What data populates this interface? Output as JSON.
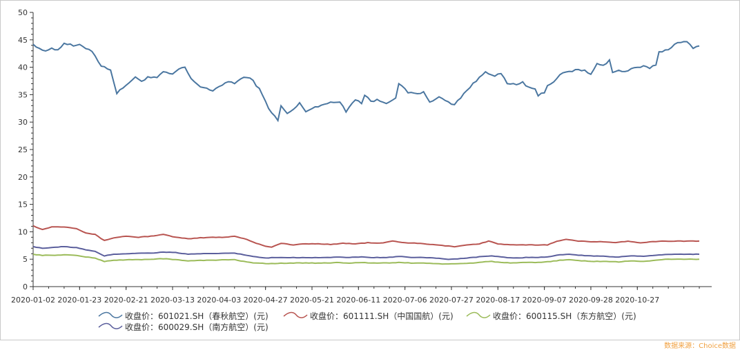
{
  "chart_data": {
    "type": "line",
    "ylim": [
      0,
      50
    ],
    "y_ticks": [
      0,
      5,
      10,
      15,
      20,
      25,
      30,
      35,
      40,
      45,
      50
    ],
    "x_tick_labels": [
      "2020-01-02",
      "2020-01-23",
      "2020-02-21",
      "2020-03-13",
      "2020-04-03",
      "2020-04-27",
      "2020-05-21",
      "2020-06-11",
      "2020-07-06",
      "2020-07-27",
      "2020-08-17",
      "2020-09-07",
      "2020-09-28",
      "2020-10-27"
    ],
    "x_count": 219,
    "grid": false,
    "legend_position": "bottom",
    "series": [
      {
        "name": "收盘价：601021.SH（春秋航空）(元)",
        "color": "#4a76a0",
        "anchors": [
          [
            0,
            44.2
          ],
          [
            4,
            42.8
          ],
          [
            6,
            43.6
          ],
          [
            8,
            43.1
          ],
          [
            10,
            44.4
          ],
          [
            13,
            43.9
          ],
          [
            15,
            44.0
          ],
          [
            19,
            43.0
          ],
          [
            22,
            40.2
          ],
          [
            25,
            39.6
          ],
          [
            27,
            35.2
          ],
          [
            30,
            36.8
          ],
          [
            33,
            38.1
          ],
          [
            35,
            37.5
          ],
          [
            37,
            38.2
          ],
          [
            40,
            38.0
          ],
          [
            42,
            39.2
          ],
          [
            45,
            38.6
          ],
          [
            47,
            39.7
          ],
          [
            49,
            40.0
          ],
          [
            51,
            37.8
          ],
          [
            54,
            36.5
          ],
          [
            56,
            36.2
          ],
          [
            58,
            35.6
          ],
          [
            60,
            36.4
          ],
          [
            63,
            37.5
          ],
          [
            65,
            37.0
          ],
          [
            67,
            37.9
          ],
          [
            70,
            38.2
          ],
          [
            73,
            36.0
          ],
          [
            76,
            32.6
          ],
          [
            79,
            30.2
          ],
          [
            80,
            33.0
          ],
          [
            82,
            31.5
          ],
          [
            84,
            32.3
          ],
          [
            86,
            33.4
          ],
          [
            88,
            32.0
          ],
          [
            91,
            32.7
          ],
          [
            93,
            33.2
          ],
          [
            96,
            33.5
          ],
          [
            99,
            33.7
          ],
          [
            101,
            32.0
          ],
          [
            103,
            33.5
          ],
          [
            104,
            34.2
          ],
          [
            106,
            33.4
          ],
          [
            107,
            35.0
          ],
          [
            109,
            33.8
          ],
          [
            111,
            34.0
          ],
          [
            114,
            33.5
          ],
          [
            117,
            34.5
          ],
          [
            118,
            37.0
          ],
          [
            121,
            35.4
          ],
          [
            123,
            35.2
          ],
          [
            126,
            35.4
          ],
          [
            128,
            33.8
          ],
          [
            130,
            34.1
          ],
          [
            131,
            34.6
          ],
          [
            134,
            33.6
          ],
          [
            136,
            33.2
          ],
          [
            139,
            35.2
          ],
          [
            141,
            36.4
          ],
          [
            143,
            37.5
          ],
          [
            146,
            39.2
          ],
          [
            149,
            38.5
          ],
          [
            151,
            38.8
          ],
          [
            153,
            37.0
          ],
          [
            156,
            36.8
          ],
          [
            158,
            37.3
          ],
          [
            160,
            36.2
          ],
          [
            162,
            35.9
          ],
          [
            163,
            34.8
          ],
          [
            165,
            35.5
          ],
          [
            166,
            36.6
          ],
          [
            168,
            37.4
          ],
          [
            170,
            38.7
          ],
          [
            172,
            39.0
          ],
          [
            175,
            39.5
          ],
          [
            178,
            39.4
          ],
          [
            180,
            38.6
          ],
          [
            182,
            40.8
          ],
          [
            184,
            40.3
          ],
          [
            186,
            41.3
          ],
          [
            187,
            39.0
          ],
          [
            189,
            39.4
          ],
          [
            191,
            39.2
          ],
          [
            194,
            39.8
          ],
          [
            197,
            40.1
          ],
          [
            199,
            39.9
          ],
          [
            201,
            40.5
          ],
          [
            202,
            42.8
          ],
          [
            205,
            43.2
          ],
          [
            207,
            44.3
          ],
          [
            211,
            44.6
          ],
          [
            213,
            43.6
          ],
          [
            215,
            43.9
          ]
        ]
      },
      {
        "name": "收盘价：601111.SH（中国国航）(元)",
        "color": "#b85450",
        "anchors": [
          [
            0,
            11.1
          ],
          [
            3,
            10.4
          ],
          [
            6,
            10.9
          ],
          [
            10,
            10.9
          ],
          [
            14,
            10.6
          ],
          [
            17,
            9.8
          ],
          [
            20,
            9.5
          ],
          [
            23,
            8.4
          ],
          [
            26,
            8.9
          ],
          [
            30,
            9.2
          ],
          [
            34,
            9.0
          ],
          [
            38,
            9.2
          ],
          [
            42,
            9.5
          ],
          [
            46,
            9.0
          ],
          [
            50,
            8.7
          ],
          [
            54,
            8.9
          ],
          [
            58,
            9.0
          ],
          [
            62,
            9.0
          ],
          [
            65,
            9.2
          ],
          [
            69,
            8.6
          ],
          [
            72,
            7.9
          ],
          [
            75,
            7.4
          ],
          [
            77,
            7.2
          ],
          [
            80,
            7.9
          ],
          [
            84,
            7.6
          ],
          [
            88,
            7.8
          ],
          [
            92,
            7.8
          ],
          [
            96,
            7.7
          ],
          [
            100,
            7.9
          ],
          [
            104,
            7.8
          ],
          [
            108,
            8.0
          ],
          [
            112,
            7.9
          ],
          [
            116,
            8.3
          ],
          [
            120,
            8.0
          ],
          [
            124,
            7.9
          ],
          [
            128,
            7.7
          ],
          [
            132,
            7.5
          ],
          [
            136,
            7.3
          ],
          [
            140,
            7.6
          ],
          [
            144,
            7.8
          ],
          [
            147,
            8.3
          ],
          [
            150,
            7.8
          ],
          [
            154,
            7.6
          ],
          [
            158,
            7.6
          ],
          [
            162,
            7.6
          ],
          [
            166,
            7.6
          ],
          [
            169,
            8.3
          ],
          [
            172,
            8.6
          ],
          [
            176,
            8.3
          ],
          [
            180,
            8.2
          ],
          [
            184,
            8.2
          ],
          [
            188,
            8.0
          ],
          [
            192,
            8.3
          ],
          [
            196,
            8.0
          ],
          [
            200,
            8.2
          ],
          [
            204,
            8.3
          ],
          [
            208,
            8.3
          ],
          [
            212,
            8.3
          ],
          [
            215,
            8.3
          ]
        ]
      },
      {
        "name": "收盘价：600115.SH（东方航空）(元)",
        "color": "#9bbb59",
        "anchors": [
          [
            0,
            5.9
          ],
          [
            3,
            5.7
          ],
          [
            6,
            5.7
          ],
          [
            10,
            5.8
          ],
          [
            14,
            5.7
          ],
          [
            17,
            5.4
          ],
          [
            20,
            5.2
          ],
          [
            23,
            4.6
          ],
          [
            26,
            4.8
          ],
          [
            30,
            4.9
          ],
          [
            34,
            4.9
          ],
          [
            38,
            5.0
          ],
          [
            42,
            5.1
          ],
          [
            46,
            4.9
          ],
          [
            50,
            4.7
          ],
          [
            54,
            4.8
          ],
          [
            58,
            4.8
          ],
          [
            62,
            4.9
          ],
          [
            65,
            4.9
          ],
          [
            69,
            4.5
          ],
          [
            72,
            4.3
          ],
          [
            75,
            4.2
          ],
          [
            78,
            4.2
          ],
          [
            82,
            4.3
          ],
          [
            86,
            4.3
          ],
          [
            90,
            4.3
          ],
          [
            94,
            4.3
          ],
          [
            98,
            4.4
          ],
          [
            102,
            4.3
          ],
          [
            106,
            4.4
          ],
          [
            110,
            4.3
          ],
          [
            114,
            4.3
          ],
          [
            118,
            4.4
          ],
          [
            122,
            4.3
          ],
          [
            126,
            4.3
          ],
          [
            130,
            4.2
          ],
          [
            134,
            4.1
          ],
          [
            138,
            4.2
          ],
          [
            142,
            4.3
          ],
          [
            145,
            4.5
          ],
          [
            148,
            4.6
          ],
          [
            151,
            4.4
          ],
          [
            155,
            4.3
          ],
          [
            159,
            4.4
          ],
          [
            163,
            4.4
          ],
          [
            167,
            4.6
          ],
          [
            170,
            4.8
          ],
          [
            173,
            4.9
          ],
          [
            177,
            4.7
          ],
          [
            181,
            4.6
          ],
          [
            185,
            4.6
          ],
          [
            189,
            4.5
          ],
          [
            193,
            4.7
          ],
          [
            197,
            4.6
          ],
          [
            201,
            4.8
          ],
          [
            205,
            5.0
          ],
          [
            209,
            5.0
          ],
          [
            213,
            5.0
          ],
          [
            215,
            5.0
          ]
        ]
      },
      {
        "name": "收盘价：600029.SH（南方航空）(元)",
        "color": "#5a5e9c",
        "anchors": [
          [
            0,
            7.3
          ],
          [
            3,
            7.0
          ],
          [
            6,
            7.1
          ],
          [
            10,
            7.3
          ],
          [
            14,
            7.1
          ],
          [
            17,
            6.7
          ],
          [
            20,
            6.4
          ],
          [
            23,
            5.6
          ],
          [
            26,
            5.9
          ],
          [
            30,
            6.0
          ],
          [
            34,
            6.1
          ],
          [
            38,
            6.1
          ],
          [
            42,
            6.3
          ],
          [
            46,
            6.2
          ],
          [
            50,
            5.9
          ],
          [
            54,
            6.0
          ],
          [
            58,
            6.0
          ],
          [
            62,
            6.1
          ],
          [
            65,
            6.1
          ],
          [
            69,
            5.7
          ],
          [
            72,
            5.4
          ],
          [
            75,
            5.2
          ],
          [
            78,
            5.3
          ],
          [
            82,
            5.3
          ],
          [
            86,
            5.3
          ],
          [
            90,
            5.3
          ],
          [
            94,
            5.3
          ],
          [
            98,
            5.4
          ],
          [
            102,
            5.3
          ],
          [
            106,
            5.4
          ],
          [
            110,
            5.3
          ],
          [
            114,
            5.3
          ],
          [
            118,
            5.5
          ],
          [
            122,
            5.3
          ],
          [
            126,
            5.3
          ],
          [
            130,
            5.2
          ],
          [
            134,
            5.0
          ],
          [
            138,
            5.1
          ],
          [
            142,
            5.3
          ],
          [
            145,
            5.5
          ],
          [
            148,
            5.6
          ],
          [
            151,
            5.4
          ],
          [
            155,
            5.2
          ],
          [
            159,
            5.3
          ],
          [
            163,
            5.3
          ],
          [
            167,
            5.5
          ],
          [
            170,
            5.8
          ],
          [
            173,
            5.9
          ],
          [
            177,
            5.7
          ],
          [
            181,
            5.6
          ],
          [
            185,
            5.5
          ],
          [
            189,
            5.4
          ],
          [
            193,
            5.6
          ],
          [
            197,
            5.5
          ],
          [
            201,
            5.7
          ],
          [
            205,
            5.9
          ],
          [
            209,
            5.9
          ],
          [
            213,
            5.9
          ],
          [
            215,
            5.9
          ]
        ]
      }
    ]
  },
  "source": "数据来源：Choice数据"
}
